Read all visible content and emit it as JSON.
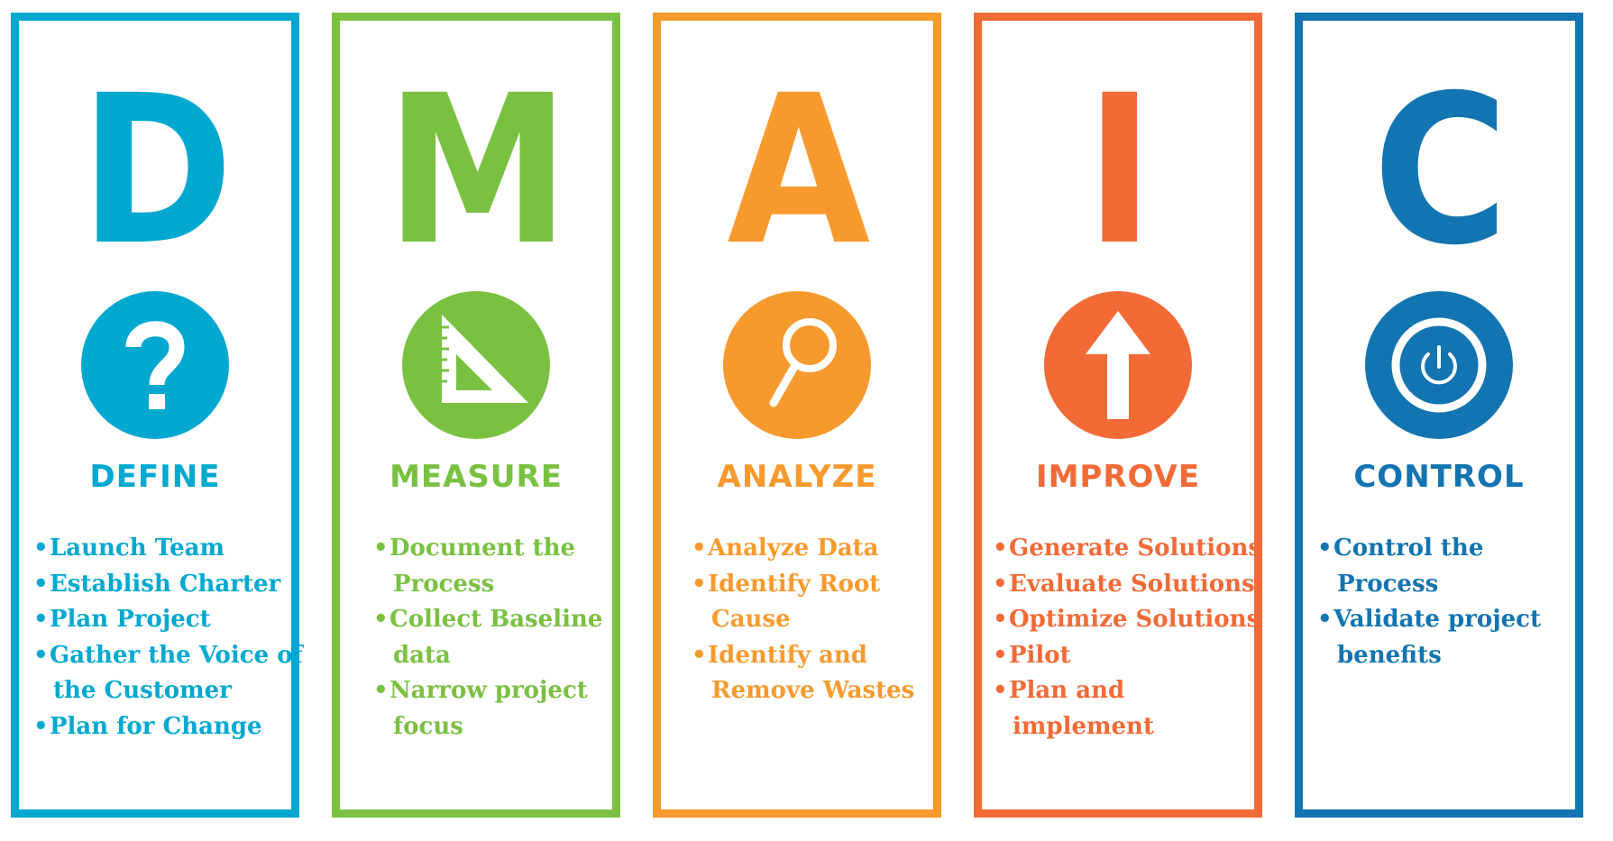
{
  "stages": [
    {
      "letter": "D",
      "name": "DEFINE",
      "color": "#00a8d0",
      "icon": "question-mark-icon",
      "items": [
        [
          "Launch Team"
        ],
        [
          "Establish Charter"
        ],
        [
          "Plan Project"
        ],
        [
          "Gather the Voice of",
          "the Customer"
        ],
        [
          "Plan for Change"
        ]
      ]
    },
    {
      "letter": "M",
      "name": "MEASURE",
      "color": "#7ac142",
      "icon": "set-square-ruler-icon",
      "items": [
        [
          "Document the",
          "Process"
        ],
        [
          "Collect Baseline",
          "data"
        ],
        [
          "Narrow project",
          "focus"
        ]
      ]
    },
    {
      "letter": "A",
      "name": "ANALYZE",
      "color": "#f79a2e",
      "icon": "magnifying-glass-icon",
      "items": [
        [
          "Analyze Data"
        ],
        [
          "Identify Root",
          "Cause"
        ],
        [
          "Identify and",
          "Remove Wastes"
        ]
      ]
    },
    {
      "letter": "I",
      "name": "IMPROVE",
      "color": "#f26a36",
      "icon": "up-arrow-icon",
      "items": [
        [
          "Generate Solutions"
        ],
        [
          "Evaluate Solutions"
        ],
        [
          "Optimize Solutions"
        ],
        [
          "Pilot"
        ],
        [
          "Plan and",
          "implement"
        ]
      ]
    },
    {
      "letter": "C",
      "name": "CONTROL",
      "color": "#1274b0",
      "icon": "power-button-icon",
      "items": [
        [
          "Control the",
          "Process"
        ],
        [
          "Validate project",
          "benefits"
        ]
      ]
    }
  ]
}
